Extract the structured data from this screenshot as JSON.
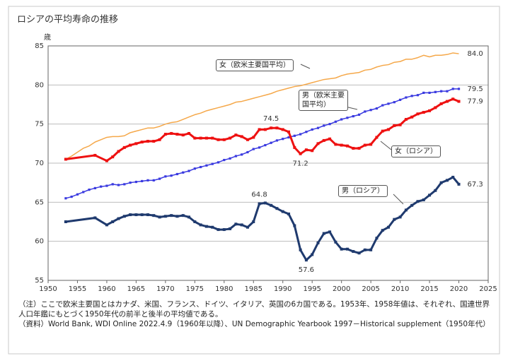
{
  "chart_data": {
    "type": "line",
    "title": "ロシアの平均寿命の推移",
    "y_label": "歳",
    "xlim": [
      1950,
      2025
    ],
    "xticks": [
      1950,
      1955,
      1960,
      1965,
      1970,
      1975,
      1980,
      1985,
      1990,
      1995,
      2000,
      2005,
      2010,
      2015,
      2020,
      2025
    ],
    "ylim": [
      55,
      85
    ],
    "yticks": [
      55,
      60,
      65,
      70,
      75,
      80,
      85
    ],
    "grid": true,
    "series": [
      {
        "name": "女（欧米主要国平均）",
        "color": "#f5a84a",
        "marker": false,
        "x": [
          1953,
          1954,
          1955,
          1956,
          1957,
          1958,
          1959,
          1960,
          1961,
          1962,
          1963,
          1964,
          1965,
          1966,
          1967,
          1968,
          1969,
          1970,
          1971,
          1972,
          1973,
          1974,
          1975,
          1976,
          1977,
          1978,
          1979,
          1980,
          1981,
          1982,
          1983,
          1984,
          1985,
          1986,
          1987,
          1988,
          1989,
          1990,
          1991,
          1992,
          1993,
          1994,
          1995,
          1996,
          1997,
          1998,
          1999,
          2000,
          2001,
          2002,
          2003,
          2004,
          2005,
          2006,
          2007,
          2008,
          2009,
          2010,
          2011,
          2012,
          2013,
          2014,
          2015,
          2016,
          2017,
          2018,
          2019,
          2020
        ],
        "values": [
          70.5,
          70.9,
          71.4,
          71.9,
          72.2,
          72.7,
          73.0,
          73.3,
          73.4,
          73.4,
          73.5,
          73.9,
          74.1,
          74.3,
          74.5,
          74.5,
          74.7,
          75.0,
          75.2,
          75.3,
          75.6,
          75.9,
          76.2,
          76.4,
          76.7,
          76.9,
          77.1,
          77.3,
          77.5,
          77.8,
          77.9,
          78.1,
          78.3,
          78.5,
          78.7,
          78.9,
          79.2,
          79.4,
          79.6,
          79.8,
          79.9,
          80.1,
          80.3,
          80.5,
          80.7,
          80.8,
          80.9,
          81.2,
          81.4,
          81.5,
          81.6,
          81.9,
          82.0,
          82.3,
          82.5,
          82.6,
          82.9,
          83.0,
          83.3,
          83.3,
          83.5,
          83.8,
          83.6,
          83.8,
          83.8,
          83.9,
          84.1,
          84.0
        ]
      },
      {
        "name": "男（欧米主要国平均）",
        "color": "#3a3ae0",
        "marker": true,
        "x": [
          1953,
          1954,
          1955,
          1956,
          1957,
          1958,
          1959,
          1960,
          1961,
          1962,
          1963,
          1964,
          1965,
          1966,
          1967,
          1968,
          1969,
          1970,
          1971,
          1972,
          1973,
          1974,
          1975,
          1976,
          1977,
          1978,
          1979,
          1980,
          1981,
          1982,
          1983,
          1984,
          1985,
          1986,
          1987,
          1988,
          1989,
          1990,
          1991,
          1992,
          1993,
          1994,
          1995,
          1996,
          1997,
          1998,
          1999,
          2000,
          2001,
          2002,
          2003,
          2004,
          2005,
          2006,
          2007,
          2008,
          2009,
          2010,
          2011,
          2012,
          2013,
          2014,
          2015,
          2016,
          2017,
          2018,
          2019,
          2020
        ],
        "values": [
          65.5,
          65.7,
          66.0,
          66.3,
          66.6,
          66.8,
          67.0,
          67.1,
          67.3,
          67.2,
          67.3,
          67.5,
          67.6,
          67.7,
          67.8,
          67.8,
          68.0,
          68.3,
          68.4,
          68.6,
          68.8,
          69.0,
          69.3,
          69.5,
          69.7,
          69.9,
          70.1,
          70.4,
          70.6,
          70.9,
          71.1,
          71.4,
          71.8,
          72.0,
          72.3,
          72.6,
          72.9,
          73.1,
          73.3,
          73.5,
          73.7,
          74.0,
          74.3,
          74.5,
          74.8,
          75.0,
          75.3,
          75.6,
          75.8,
          76.0,
          76.2,
          76.6,
          76.8,
          77.0,
          77.4,
          77.6,
          77.8,
          78.1,
          78.4,
          78.6,
          78.7,
          79.0,
          79.0,
          79.1,
          79.2,
          79.2,
          79.5,
          79.5
        ]
      },
      {
        "name": "女（ロシア）",
        "color": "#ee1111",
        "marker": true,
        "x": [
          1953,
          1958,
          1960,
          1961,
          1962,
          1963,
          1964,
          1965,
          1966,
          1967,
          1968,
          1969,
          1970,
          1971,
          1972,
          1973,
          1974,
          1975,
          1976,
          1977,
          1978,
          1979,
          1980,
          1981,
          1982,
          1983,
          1984,
          1985,
          1986,
          1987,
          1988,
          1989,
          1990,
          1991,
          1992,
          1993,
          1994,
          1995,
          1996,
          1997,
          1998,
          1999,
          2000,
          2001,
          2002,
          2003,
          2004,
          2005,
          2006,
          2007,
          2008,
          2009,
          2010,
          2011,
          2012,
          2013,
          2014,
          2015,
          2016,
          2017,
          2018,
          2019,
          2020
        ],
        "values": [
          70.5,
          71.0,
          70.3,
          70.8,
          71.5,
          72.0,
          72.3,
          72.5,
          72.7,
          72.8,
          72.8,
          73.0,
          73.7,
          73.8,
          73.7,
          73.6,
          73.8,
          73.2,
          73.2,
          73.2,
          73.2,
          73.0,
          73.0,
          73.2,
          73.6,
          73.4,
          73.0,
          73.3,
          74.3,
          74.3,
          74.5,
          74.5,
          74.3,
          74.0,
          72.0,
          71.2,
          71.7,
          71.6,
          72.5,
          72.9,
          73.1,
          72.4,
          72.3,
          72.2,
          71.9,
          71.9,
          72.3,
          72.4,
          73.3,
          74.1,
          74.3,
          74.8,
          74.9,
          75.6,
          75.9,
          76.3,
          76.5,
          76.7,
          77.1,
          77.6,
          77.9,
          78.2,
          77.9
        ]
      },
      {
        "name": "男（ロシア）",
        "color": "#1f3a6e",
        "marker": true,
        "x": [
          1953,
          1958,
          1960,
          1961,
          1962,
          1963,
          1964,
          1965,
          1966,
          1967,
          1968,
          1969,
          1970,
          1971,
          1972,
          1973,
          1974,
          1975,
          1976,
          1977,
          1978,
          1979,
          1980,
          1981,
          1982,
          1983,
          1984,
          1985,
          1986,
          1987,
          1988,
          1989,
          1990,
          1991,
          1992,
          1993,
          1994,
          1995,
          1996,
          1997,
          1998,
          1999,
          2000,
          2001,
          2002,
          2003,
          2004,
          2005,
          2006,
          2007,
          2008,
          2009,
          2010,
          2011,
          2012,
          2013,
          2014,
          2015,
          2016,
          2017,
          2018,
          2019,
          2020
        ],
        "values": [
          62.5,
          63.0,
          62.1,
          62.5,
          62.9,
          63.2,
          63.4,
          63.4,
          63.4,
          63.4,
          63.3,
          63.1,
          63.2,
          63.3,
          63.2,
          63.3,
          63.1,
          62.5,
          62.1,
          61.9,
          61.8,
          61.5,
          61.5,
          61.6,
          62.2,
          62.1,
          61.8,
          62.5,
          64.8,
          64.9,
          64.6,
          64.2,
          63.8,
          63.5,
          62.0,
          58.9,
          57.6,
          58.3,
          59.8,
          61.0,
          61.2,
          59.9,
          59.0,
          59.0,
          58.7,
          58.5,
          58.9,
          58.9,
          60.4,
          61.4,
          61.8,
          62.8,
          63.1,
          64.0,
          64.6,
          65.1,
          65.3,
          65.9,
          66.5,
          67.5,
          67.8,
          68.2,
          67.3
        ]
      }
    ],
    "annotations": [
      {
        "text": "84.0",
        "x": 2020,
        "y": 84.0,
        "side": "right"
      },
      {
        "text": "79.5",
        "x": 2020,
        "y": 79.5,
        "side": "right"
      },
      {
        "text": "77.9",
        "x": 2020,
        "y": 77.9,
        "side": "right"
      },
      {
        "text": "67.3",
        "x": 2020,
        "y": 67.3,
        "side": "right"
      },
      {
        "text": "74.5",
        "x": 1988,
        "y": 74.5,
        "side": "above"
      },
      {
        "text": "71.2",
        "x": 1993,
        "y": 71.2,
        "side": "below"
      },
      {
        "text": "64.8",
        "x": 1986,
        "y": 64.8,
        "side": "above"
      },
      {
        "text": "57.6",
        "x": 1994,
        "y": 57.6,
        "side": "below"
      }
    ]
  },
  "notes": [
    "（注）ここで欧米主要国とはカナダ、米国、フランス、ドイツ、イタリア、英国の6カ国である。1953年、1958年値は、それぞれ、国連世界人口年鑑にもとづく1950年代の前半と後半の平均値である。",
    "（資料）World Bank, WDI Online 2022.4.9（1960年以降）、UN Demographic Yearbook 1997－Historical supplement（1950年代）"
  ]
}
